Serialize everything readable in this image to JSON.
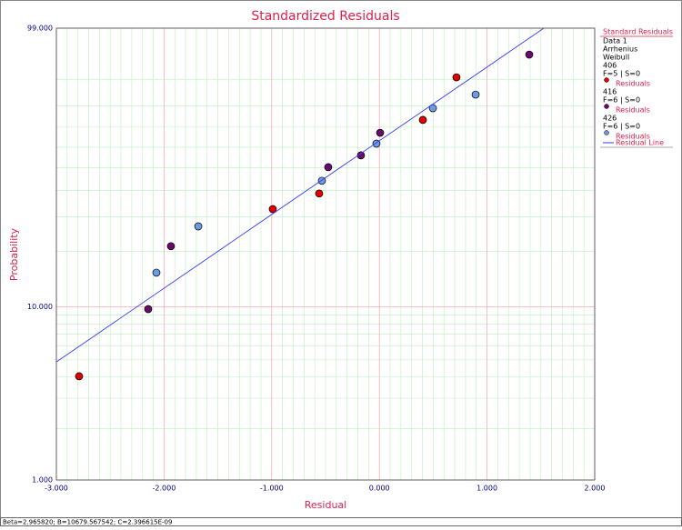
{
  "chart_data": {
    "type": "scatter",
    "title": "Standardized Residuals",
    "xlabel": "Residual",
    "ylabel": "Probability",
    "yscale": "weibull",
    "grid": true,
    "xlim": [
      -3,
      2
    ],
    "ylim": [
      1,
      99
    ],
    "xticks": [
      {
        "value": -3,
        "label": "-3.000"
      },
      {
        "value": -2,
        "label": "-2.000"
      },
      {
        "value": -1,
        "label": "-1.000"
      },
      {
        "value": 0,
        "label": "0.000"
      },
      {
        "value": 1,
        "label": "1.000"
      },
      {
        "value": 2,
        "label": "2.000"
      }
    ],
    "yticks": [
      {
        "value": 1,
        "label": "1.000"
      },
      {
        "value": 10,
        "label": "10.000"
      },
      {
        "value": 99,
        "label": "99.000"
      }
    ],
    "legend_title": "Standard Residuals",
    "legend_lines": [
      "Data 1",
      "Arrhenius",
      "Weibull"
    ],
    "series": [
      {
        "group": "406",
        "info": "F=5 | S=0",
        "name": "Residuals",
        "color": "#e00000",
        "x": [
          -2.789,
          -0.99,
          -0.559,
          0.404,
          0.716
        ],
        "values": [
          4.02,
          32.7,
          38.7,
          73.5,
          90.6
        ]
      },
      {
        "group": "416",
        "info": "F=6 | S=0",
        "name": "Residuals",
        "color": "#6a0a6a",
        "x": [
          -2.147,
          -1.936,
          -0.475,
          -0.171,
          0.007,
          1.392
        ],
        "values": [
          9.7,
          21.3,
          50.3,
          56.0,
          67.2,
          96.0
        ]
      },
      {
        "group": "426",
        "info": "F=6 | S=0",
        "name": "Residuals",
        "color": "#6b9be0",
        "x": [
          -2.071,
          -1.682,
          -0.534,
          -0.027,
          0.497,
          0.894
        ],
        "values": [
          15.4,
          26.9,
          44.1,
          61.8,
          78.9,
          84.6
        ]
      },
      {
        "name": "Residual Line",
        "color": "#3a3aff",
        "x": [
          -3.0,
          1.527
        ],
        "values": [
          4.86,
          99
        ]
      }
    ],
    "footer": "Beta=2.965820; B=10679.567542; C=2.396615E-09"
  }
}
